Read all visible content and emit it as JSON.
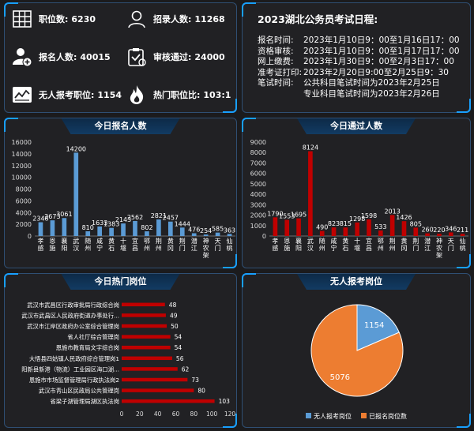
{
  "stats": {
    "positions": {
      "label": "职位数:",
      "value": "6230"
    },
    "recruits": {
      "label": "招录人数:",
      "value": "11268"
    },
    "applicants": {
      "label": "报名人数:",
      "value": "40015"
    },
    "approved": {
      "label": "审核通过:",
      "value": "24000"
    },
    "no_applicant": {
      "label": "无人报考职位:",
      "value": "1154"
    },
    "hot_ratio": {
      "label": "热门职位比:",
      "value": "103:1"
    }
  },
  "schedule": {
    "title": "2023湖北公务员考试日程:",
    "rows": [
      {
        "k": "报名时间:",
        "v": "2023年1月10日9：00至1月16日17：00"
      },
      {
        "k": "资格审核:",
        "v": "2023年1月10日9：00至1月17日17：00"
      },
      {
        "k": "网上缴费:",
        "v": "2023年1月30日9：00至2月3日17：00"
      },
      {
        "k": "准考证打印:",
        "v": "2023年2月20日9:00至2月25日9：30"
      },
      {
        "k": "笔试时间:",
        "v": "公共科目笔试时间为2023年2月25日"
      },
      {
        "k": "",
        "v": "专业科目笔试时间为2023年2月26日"
      }
    ]
  },
  "chart_data": [
    {
      "type": "bar",
      "title": "今日报名人数",
      "categories": [
        "孝感",
        "恩施",
        "襄阳",
        "武汉",
        "随州",
        "咸宁",
        "黄石",
        "十堰",
        "宜昌",
        "鄂州",
        "荆州",
        "黄冈",
        "荆门",
        "潜江",
        "神农架",
        "天门",
        "仙桃"
      ],
      "values": [
        2348,
        2673,
        3061,
        14200,
        810,
        1633,
        1383,
        2143,
        2562,
        802,
        2821,
        2457,
        1444,
        476,
        254,
        585,
        363
      ],
      "ylim": [
        0,
        16000
      ],
      "yticks": [
        0,
        2000,
        4000,
        6000,
        8000,
        10000,
        12000,
        14000,
        16000
      ],
      "color": "#5b9bd5"
    },
    {
      "type": "bar",
      "title": "今日通过人数",
      "categories": [
        "孝感",
        "恩施",
        "襄阳",
        "武汉",
        "随州",
        "咸宁",
        "黄石",
        "十堰",
        "宜昌",
        "鄂州",
        "荆州",
        "黄冈",
        "荆门",
        "潜江",
        "神农架",
        "天门",
        "仙桃"
      ],
      "values": [
        1790,
        1553,
        1695,
        8124,
        490,
        823,
        815,
        1298,
        1598,
        533,
        2013,
        1426,
        805,
        260,
        220,
        346,
        211
      ],
      "ylim": [
        0,
        9000
      ],
      "yticks": [
        0,
        1000,
        2000,
        3000,
        4000,
        5000,
        6000,
        7000,
        8000,
        9000
      ],
      "color": "#c00000"
    },
    {
      "type": "bar",
      "orientation": "horizontal",
      "title": "今日热门岗位",
      "categories": [
        "武汉市武昌区行政审批局行政综合岗",
        "武汉市武昌区人民政府街道办事处行...",
        "武汉市江岸区政府办公室综合管理岗",
        "省人社厅综合管理岗",
        "恩施市教育局文字综合岗",
        "大悟县四姑镇人民政府综合管理岗1",
        "阳新县新港（物流）工业园区海口湖...",
        "恩施市市场监督管理局行政执法岗2",
        "武汉市青山区民政局公共管理岗",
        "省梁子湖管理局湖区执法岗"
      ],
      "values": [
        48,
        49,
        50,
        54,
        54,
        56,
        62,
        73,
        80,
        103
      ],
      "xlim": [
        0,
        120
      ],
      "xticks": [
        0,
        20,
        40,
        60,
        80,
        100,
        120
      ],
      "color": "#c00000"
    },
    {
      "type": "pie",
      "title": "无人报考岗位",
      "labels": [
        "无人报考岗位",
        "已报名岗位数"
      ],
      "values": [
        1154,
        5076
      ],
      "colors": [
        "#5b9bd5",
        "#ed7d31"
      ],
      "legend": "bottom"
    }
  ]
}
